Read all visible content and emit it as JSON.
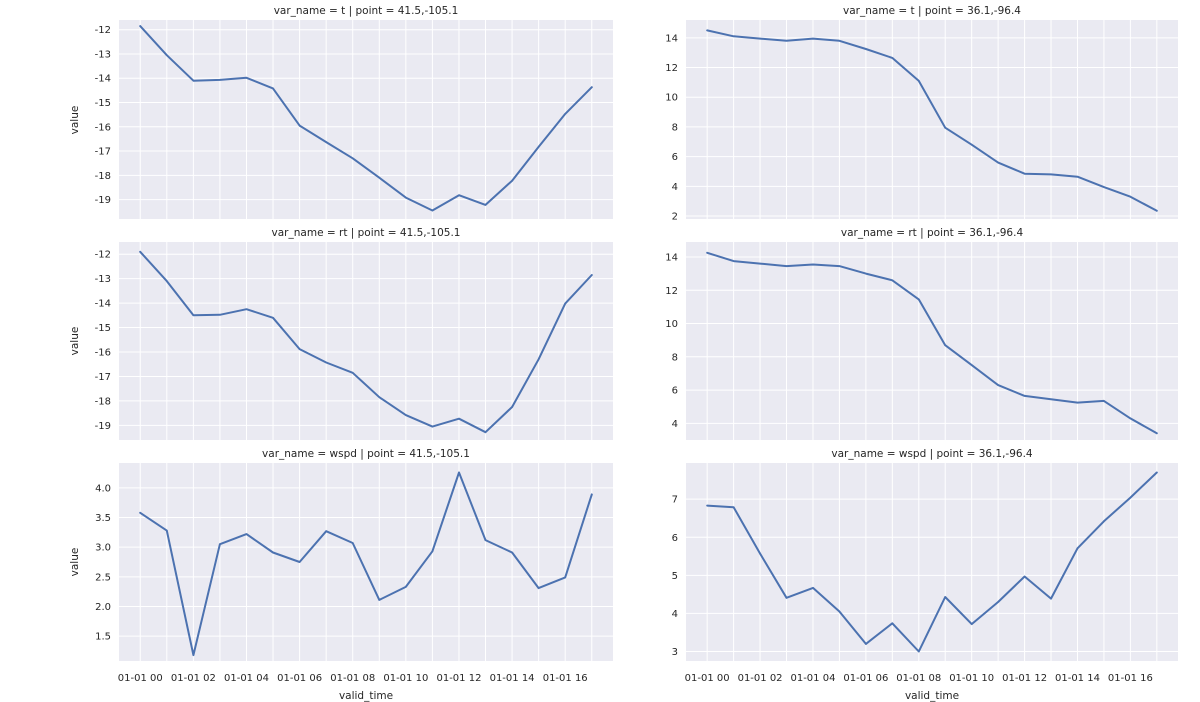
{
  "chart_data": [
    {
      "type": "line",
      "title": "var_name = t | point = 41.5,-105.1",
      "ylabel": "value",
      "xlabel": "",
      "x_tick_labels": [],
      "y_ticks": [
        -12,
        -13,
        -14,
        -15,
        -16,
        -17,
        -18,
        -19
      ],
      "ylim": [
        -19.8,
        -11.6
      ],
      "xlim": [
        -0.8,
        17.8
      ],
      "x": [
        0,
        1,
        2,
        3,
        4,
        5,
        6,
        7,
        8,
        9,
        10,
        11,
        12,
        13,
        14,
        15,
        16,
        17
      ],
      "values": [
        -11.85,
        -13.05,
        -14.1,
        -14.07,
        -13.98,
        -14.42,
        -15.95,
        -16.63,
        -17.3,
        -18.1,
        -18.92,
        -19.45,
        -18.82,
        -19.22,
        -18.22,
        -16.83,
        -15.47,
        -14.37
      ]
    },
    {
      "type": "line",
      "title": "var_name = t | point = 36.1,-96.4",
      "ylabel": "",
      "xlabel": "",
      "x_tick_labels": [],
      "y_ticks": [
        2,
        4,
        6,
        8,
        10,
        12,
        14
      ],
      "ylim": [
        1.8,
        15.2
      ],
      "xlim": [
        -0.8,
        17.8
      ],
      "x": [
        0,
        1,
        2,
        3,
        4,
        5,
        6,
        7,
        8,
        9,
        10,
        11,
        12,
        13,
        14,
        15,
        16,
        17
      ],
      "values": [
        14.5,
        14.1,
        13.95,
        13.8,
        13.95,
        13.8,
        13.25,
        12.65,
        11.1,
        7.95,
        6.8,
        5.6,
        4.85,
        4.8,
        4.65,
        3.95,
        3.3,
        2.35
      ]
    },
    {
      "type": "line",
      "title": "var_name = rt | point = 41.5,-105.1",
      "ylabel": "value",
      "xlabel": "",
      "x_tick_labels": [],
      "y_ticks": [
        -12,
        -13,
        -14,
        -15,
        -16,
        -17,
        -18,
        -19
      ],
      "ylim": [
        -19.6,
        -11.5
      ],
      "xlim": [
        -0.8,
        17.8
      ],
      "x": [
        0,
        1,
        2,
        3,
        4,
        5,
        6,
        7,
        8,
        9,
        10,
        11,
        12,
        13,
        14,
        15,
        16,
        17
      ],
      "values": [
        -11.9,
        -13.1,
        -14.5,
        -14.48,
        -14.25,
        -14.6,
        -15.88,
        -16.43,
        -16.85,
        -17.85,
        -18.58,
        -19.05,
        -18.73,
        -19.28,
        -18.25,
        -16.3,
        -14.02,
        -12.85
      ]
    },
    {
      "type": "line",
      "title": "var_name = rt | point = 36.1,-96.4",
      "ylabel": "",
      "xlabel": "",
      "x_tick_labels": [],
      "y_ticks": [
        4,
        6,
        8,
        10,
        12,
        14
      ],
      "ylim": [
        3.0,
        14.9
      ],
      "xlim": [
        -0.8,
        17.8
      ],
      "x": [
        0,
        1,
        2,
        3,
        4,
        5,
        6,
        7,
        8,
        9,
        10,
        11,
        12,
        13,
        14,
        15,
        16,
        17
      ],
      "values": [
        14.25,
        13.75,
        13.6,
        13.45,
        13.55,
        13.45,
        13.0,
        12.6,
        11.45,
        8.7,
        7.5,
        6.3,
        5.65,
        5.45,
        5.25,
        5.35,
        4.3,
        3.4
      ]
    },
    {
      "type": "line",
      "title": "var_name = wspd | point = 41.5,-105.1",
      "ylabel": "value",
      "xlabel": "valid_time",
      "x_tick_labels": [
        "01-01 00",
        "01-01 02",
        "01-01 04",
        "01-01 06",
        "01-01 08",
        "01-01 10",
        "01-01 12",
        "01-01 14",
        "01-01 16"
      ],
      "y_ticks": [
        1.5,
        2.0,
        2.5,
        3.0,
        3.5,
        4.0
      ],
      "y_tick_labels": [
        "1.5",
        "2.0",
        "2.5",
        "3.0",
        "3.5",
        "4.0"
      ],
      "ylim": [
        1.08,
        4.42
      ],
      "xlim": [
        -0.8,
        17.8
      ],
      "x": [
        0,
        1,
        2,
        3,
        4,
        5,
        6,
        7,
        8,
        9,
        10,
        11,
        12,
        13,
        14,
        15,
        16,
        17
      ],
      "values": [
        3.58,
        3.28,
        1.18,
        3.05,
        3.22,
        2.91,
        2.75,
        3.27,
        3.07,
        2.11,
        2.33,
        2.93,
        4.26,
        3.12,
        2.91,
        2.31,
        2.49,
        3.89
      ]
    },
    {
      "type": "line",
      "title": "var_name = wspd | point = 36.1,-96.4",
      "ylabel": "",
      "xlabel": "valid_time",
      "x_tick_labels": [
        "01-01 00",
        "01-01 02",
        "01-01 04",
        "01-01 06",
        "01-01 08",
        "01-01 10",
        "01-01 12",
        "01-01 14",
        "01-01 16"
      ],
      "y_ticks": [
        3,
        4,
        5,
        6,
        7
      ],
      "ylim": [
        2.75,
        7.95
      ],
      "xlim": [
        -0.8,
        17.8
      ],
      "x": [
        0,
        1,
        2,
        3,
        4,
        5,
        6,
        7,
        8,
        9,
        10,
        11,
        12,
        13,
        14,
        15,
        16,
        17
      ],
      "values": [
        6.83,
        6.79,
        5.57,
        4.41,
        4.67,
        4.05,
        3.2,
        3.74,
        3.0,
        4.43,
        3.72,
        4.3,
        4.97,
        4.39,
        5.71,
        6.42,
        7.04,
        7.7
      ]
    }
  ],
  "colors": {
    "line": "#4c72b0",
    "panel_bg": "#eaeaf2",
    "grid": "#ffffff",
    "text": "#262626"
  }
}
